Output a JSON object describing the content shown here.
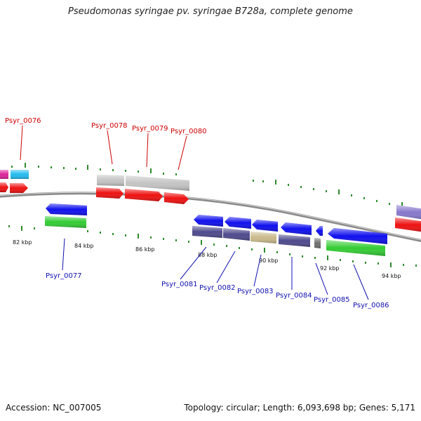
{
  "title": "Pseudomonas syringae pv. syringae B728a, complete genome",
  "footer": {
    "accession": "Accession: NC_007005",
    "stats": "Topology: circular; Length: 6,093,698 bp; Genes: 5,171"
  },
  "colors": {
    "backbone": "#8a8a8a",
    "tick": "#2e8b2e",
    "label_forward": "#cc0000",
    "label_reverse": "#1010b0",
    "cds_forward": "#ee1111",
    "cds_reverse": "#1010ee",
    "gray_feature": "#c4c4c4",
    "green_feature": "#33cc33",
    "purple_feature": "#4e4a8c",
    "tan_feature": "#c9b98a",
    "magenta_feature": "#dd2299",
    "cyan_feature": "#22bbee",
    "lavender_feature": "#8878cc"
  },
  "tick_labels": [
    "82 kbp",
    "84 kbp",
    "86 kbp",
    "88 kbp",
    "90 kbp",
    "92 kbp",
    "94 kbp"
  ],
  "gene_labels": {
    "forward": [
      "Psyr_0076",
      "Psyr_0078",
      "Psyr_0079",
      "Psyr_0080"
    ],
    "reverse": [
      "Psyr_0077",
      "Psyr_0081",
      "Psyr_0082",
      "Psyr_0083",
      "Psyr_0084",
      "Psyr_0085",
      "Psyr_0086"
    ]
  }
}
